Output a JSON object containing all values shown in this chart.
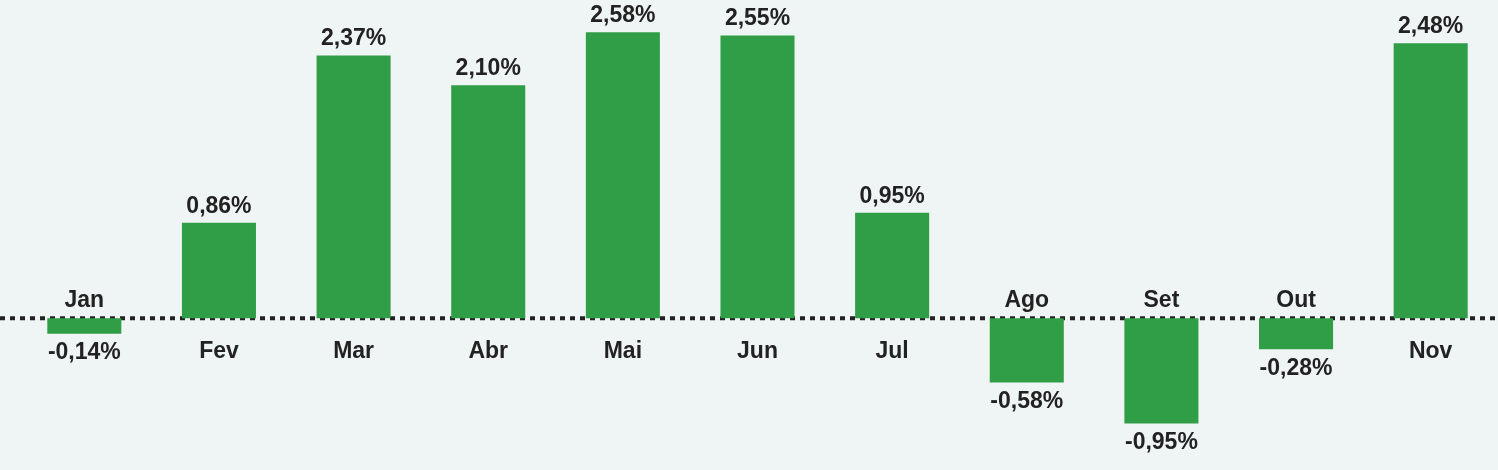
{
  "chart_data": {
    "type": "bar",
    "categories": [
      "Jan",
      "Fev",
      "Mar",
      "Abr",
      "Mai",
      "Jun",
      "Jul",
      "Ago",
      "Set",
      "Out",
      "Nov"
    ],
    "values": [
      -0.14,
      0.86,
      2.37,
      2.1,
      2.58,
      2.55,
      0.95,
      -0.58,
      -0.95,
      -0.28,
      2.48
    ],
    "value_labels": [
      "-0,14%",
      "0,86%",
      "2,37%",
      "2,10%",
      "2,58%",
      "2,55%",
      "0,95%",
      "-0,58%",
      "-0,95%",
      "-0,28%",
      "2,48%"
    ],
    "color": "#309e47",
    "ylim": [
      -1.37,
      2.87
    ],
    "tick_labels": "x",
    "ref_lines": [
      {
        "axis": "y",
        "value": 0,
        "color": "#222222",
        "line_style": "dotted"
      }
    ]
  }
}
